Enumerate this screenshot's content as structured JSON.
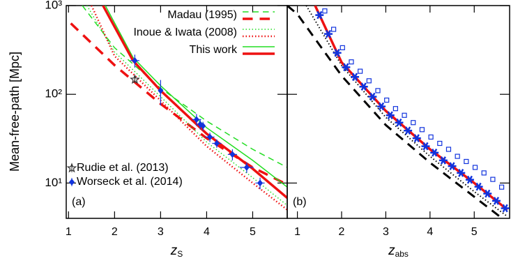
{
  "chart_data": [
    {
      "type": "line",
      "ylabel": "Mean-free-path [Mpc]",
      "xlabel": "z",
      "xlabel_sub": "S",
      "panel_label": "(a)",
      "xlim": [
        0.95,
        5.75
      ],
      "ylim": [
        4,
        1000
      ],
      "log_y": true,
      "xticks": [
        1,
        2,
        3,
        4,
        5
      ],
      "yticks": [
        {
          "value": 10,
          "label": "10¹"
        },
        {
          "value": 100,
          "label": "10²"
        },
        {
          "value": 1000,
          "label": "10³"
        }
      ],
      "legend": "upper right",
      "marker_legend": "lower left",
      "series": [
        {
          "name": "Madau (1995)",
          "color": "#22dd22",
          "style": "dashed",
          "linewidth": 1.5,
          "x": [
            1.3,
            2,
            3,
            4,
            5,
            5.75
          ],
          "values": [
            1000,
            335,
            117,
            50,
            24,
            15
          ]
        },
        {
          "name": "Madau (1995)",
          "color": "#ee1111",
          "style": "dashed",
          "linewidth": 3.5,
          "x": [
            1.05,
            2,
            3,
            4,
            5,
            5.75
          ],
          "values": [
            630,
            213,
            78,
            32,
            15,
            9.6
          ]
        },
        {
          "name": "Inoue & Iwata (2008)",
          "color": "#22dd22",
          "style": "dotted",
          "linewidth": 1.5,
          "x": [
            1.4,
            2,
            3,
            4,
            5,
            5.75
          ],
          "values": [
            1000,
            300,
            94,
            29,
            11.5,
            5.6
          ]
        },
        {
          "name": "Inoue & Iwata (2008)",
          "color": "#ee1111",
          "style": "dotted",
          "linewidth": 2.5,
          "x": [
            1.5,
            2,
            3,
            4,
            5,
            5.75
          ],
          "values": [
            1000,
            270,
            85,
            26,
            10,
            5
          ]
        },
        {
          "name": "This work",
          "color": "#22dd22",
          "style": "solid",
          "linewidth": 1.5,
          "x": [
            1.8,
            2.4,
            3,
            4,
            5,
            5.75
          ],
          "values": [
            1000,
            260,
            125,
            42,
            18,
            9
          ]
        },
        {
          "name": "This work",
          "color": "#ee1111",
          "style": "solid",
          "linewidth": 3.5,
          "x": [
            1.75,
            2.4,
            3,
            4,
            5,
            5.75
          ],
          "values": [
            1000,
            240,
            110,
            36,
            14.5,
            6.8
          ]
        },
        {
          "name": "Rudie et al. (2013)",
          "color": "#333333",
          "marker": "star",
          "x": [
            2.44
          ],
          "values": [
            147
          ],
          "yerr": [
            12
          ],
          "xerr": [
            0
          ]
        },
        {
          "name": "Worseck et al. (2014)",
          "color": "#1133dd",
          "marker": "diamond",
          "x": [
            2.44,
            3.0,
            3.78,
            3.86,
            3.92,
            4.07,
            4.22,
            4.56,
            4.87,
            5.16
          ],
          "values": [
            240,
            110,
            52,
            46,
            44,
            33,
            28,
            21,
            15,
            10
          ],
          "yerr": [
            40,
            35,
            8,
            6,
            5,
            4,
            3,
            3,
            2,
            1.5
          ],
          "xerr": [
            0.1,
            0,
            0.1,
            0.05,
            0.05,
            0.1,
            0.1,
            0.1,
            0.15,
            0.1
          ]
        }
      ]
    },
    {
      "type": "line",
      "xlabel": "z",
      "xlabel_sub": "abs",
      "panel_label": "(b)",
      "xlim": [
        0.77,
        5.8
      ],
      "ylim": [
        4,
        1000
      ],
      "log_y": true,
      "xticks": [
        1,
        2,
        3,
        4,
        5
      ],
      "series": [
        {
          "color": "#000000",
          "style": "dashed",
          "linewidth": 3,
          "x": [
            0.77,
            1,
            2,
            3,
            4,
            5,
            5.75
          ],
          "values": [
            1000,
            800,
            162,
            45,
            17,
            7,
            3.6
          ]
        },
        {
          "color": "#000000",
          "style": "dotted",
          "linewidth": 2,
          "x": [
            1.2,
            2,
            3,
            4,
            5,
            5.75
          ],
          "values": [
            1000,
            212,
            55,
            20,
            8,
            4.2
          ]
        },
        {
          "color": "#ee1111",
          "style": "solid",
          "linewidth": 3.5,
          "x": [
            1.4,
            2,
            3,
            4,
            5,
            5.75
          ],
          "values": [
            1000,
            229,
            65,
            24,
            10,
            5
          ]
        },
        {
          "color": "#1133dd",
          "marker": "square",
          "x": [
            1.62,
            1.82,
            2.02,
            2.22,
            2.42,
            2.62,
            2.82,
            3.02,
            3.22,
            3.42,
            3.62,
            3.82,
            4.02,
            4.22,
            4.42,
            4.62,
            4.82,
            5.02,
            5.22,
            5.42,
            5.62
          ],
          "values": [
            870,
            540,
            335,
            232,
            182,
            142,
            110,
            86,
            69,
            58,
            48,
            40,
            33,
            28,
            24,
            20,
            17.5,
            15,
            13,
            11,
            9
          ]
        },
        {
          "color": "#1133dd",
          "marker": "asterisk",
          "x": [
            1.5,
            1.7,
            1.9,
            2.1,
            2.3,
            2.5,
            2.7,
            2.9,
            3.1,
            3.3,
            3.5,
            3.7,
            3.9,
            4.1,
            4.3,
            4.5,
            4.7,
            4.9,
            5.1,
            5.3,
            5.5,
            5.7
          ],
          "values": [
            782,
            479,
            293,
            202,
            157,
            122,
            94,
            73,
            58,
            48,
            39,
            32,
            26,
            22,
            18,
            15.5,
            13,
            10.9,
            9.1,
            7.6,
            6.3,
            5.2
          ]
        }
      ]
    }
  ]
}
